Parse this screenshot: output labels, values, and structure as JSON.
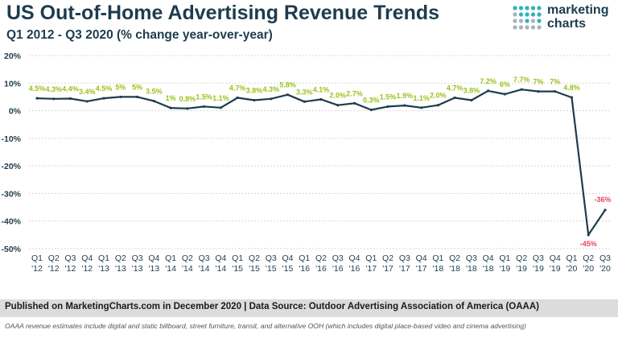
{
  "header": {
    "title": "US Out-of-Home Advertising Revenue Trends",
    "subtitle": "Q1 2012 - Q3 2020 (% change year-over-year)"
  },
  "logo": {
    "line1": "marketing",
    "line2": "charts"
  },
  "footer": {
    "published": "Published on MarketingCharts.com in December 2020 | Data Source: Outdoor Advertising Association of America (OAAA)",
    "note": "OAAA revenue estimates include digital and static billboard, street furniture, transit, and alternative OOH (which includes digital place-based video and cinema advertising)"
  },
  "colors": {
    "line": "#1d3c4e",
    "positive_label": "#9bc01b",
    "negative_label": "#e6455f",
    "grid": "#d8d8d8",
    "logo_teal": "#2fb3b7",
    "logo_grey": "#a9b2b8"
  },
  "chart_data": {
    "type": "line",
    "title": "US Out-of-Home Advertising Revenue Trends",
    "subtitle": "Q1 2012 - Q3 2020 (% change year-over-year)",
    "ylim": [
      -50,
      20
    ],
    "yticks": [
      20,
      10,
      0,
      -10,
      -20,
      -30,
      -40,
      -50
    ],
    "ytick_labels": [
      "20%",
      "10%",
      "0%",
      "-10%",
      "-20%",
      "-30%",
      "-40%",
      "-50%"
    ],
    "grid": true,
    "categories": [
      [
        "Q1",
        "'12"
      ],
      [
        "Q2",
        "'12"
      ],
      [
        "Q3",
        "'12"
      ],
      [
        "Q4",
        "'12"
      ],
      [
        "Q1",
        "'13"
      ],
      [
        "Q2",
        "'13"
      ],
      [
        "Q3",
        "'13"
      ],
      [
        "Q4",
        "'13"
      ],
      [
        "Q1",
        "'14"
      ],
      [
        "Q2",
        "'14"
      ],
      [
        "Q3",
        "'14"
      ],
      [
        "Q4",
        "'14"
      ],
      [
        "Q1",
        "'15"
      ],
      [
        "Q2",
        "'15"
      ],
      [
        "Q3",
        "'15"
      ],
      [
        "Q4",
        "'15"
      ],
      [
        "Q1",
        "'16"
      ],
      [
        "Q2",
        "'16"
      ],
      [
        "Q3",
        "'16"
      ],
      [
        "Q4",
        "'16"
      ],
      [
        "Q1",
        "'17"
      ],
      [
        "Q2",
        "'17"
      ],
      [
        "Q3",
        "'17"
      ],
      [
        "Q4",
        "'17"
      ],
      [
        "Q1",
        "'18"
      ],
      [
        "Q2",
        "'18"
      ],
      [
        "Q3",
        "'18"
      ],
      [
        "Q4",
        "'18"
      ],
      [
        "Q1",
        "'19"
      ],
      [
        "Q2",
        "'19"
      ],
      [
        "Q3",
        "'19"
      ],
      [
        "Q4",
        "'19"
      ],
      [
        "Q1",
        "'20"
      ],
      [
        "Q2",
        "'20"
      ],
      [
        "Q3",
        "'20"
      ]
    ],
    "values": [
      4.5,
      4.3,
      4.4,
      3.4,
      4.5,
      5,
      5,
      3.5,
      1,
      0.8,
      1.5,
      1.1,
      4.7,
      3.8,
      4.3,
      5.8,
      3.3,
      4.1,
      2.0,
      2.7,
      0.3,
      1.5,
      1.9,
      1.1,
      2.0,
      4.7,
      3.8,
      7.2,
      6,
      7.7,
      7,
      7,
      4.8,
      -45,
      -36
    ],
    "data_labels": [
      "4.5%",
      "4.3%",
      "4.4%",
      "3.4%",
      "4.5%",
      "5%",
      "5%",
      "3.5%",
      "1%",
      "0.8%",
      "1.5%",
      "1.1%",
      "4.7%",
      "3.8%",
      "4.3%",
      "5.8%",
      "3.3%",
      "4.1%",
      "2.0%",
      "2.7%",
      "0.3%",
      "1.5%",
      "1.9%",
      "1.1%",
      "2.0%",
      "4.7%",
      "3.8%",
      "7.2%",
      "6%",
      "7.7%",
      "7%",
      "7%",
      "4.8%",
      "-45%",
      "-36%"
    ]
  }
}
